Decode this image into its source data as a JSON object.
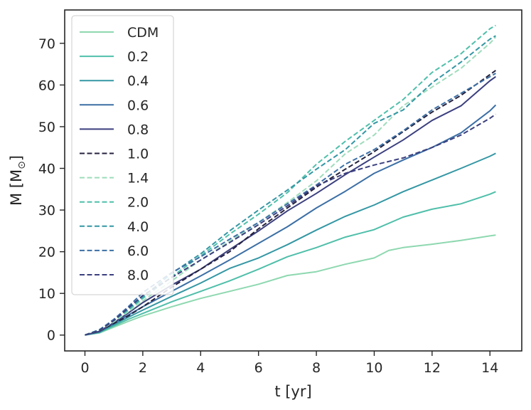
{
  "chart_data": {
    "type": "line",
    "xlabel": "t [yr]",
    "ylabel": "M [M",
    "ylabel_subscript": "⊙",
    "ylabel_close": "]",
    "xlim": [
      -0.7,
      15.1
    ],
    "ylim": [
      -3.8,
      78
    ],
    "xticks": [
      0,
      2,
      4,
      6,
      8,
      10,
      12,
      14
    ],
    "yticks": [
      0,
      10,
      20,
      30,
      40,
      50,
      60,
      70
    ],
    "legend_position": "upper-left",
    "series": [
      {
        "name": "CDM",
        "style": "solid",
        "color": "#8ed8b0",
        "x": [
          0,
          0.5,
          1,
          1.5,
          2,
          3,
          4,
          5,
          6,
          7,
          8,
          9,
          10,
          10.5,
          11,
          12,
          13,
          14,
          14.2
        ],
        "y": [
          0,
          0.5,
          1.9,
          3.3,
          4.6,
          6.8,
          8.8,
          10.5,
          12.2,
          14.3,
          15.2,
          17.0,
          18.5,
          20.3,
          21.0,
          21.8,
          22.7,
          23.8,
          24.0
        ]
      },
      {
        "name": "0.2",
        "style": "solid",
        "color": "#4fbfaa",
        "x": [
          0,
          0.5,
          1,
          1.5,
          2,
          3,
          4,
          5,
          6,
          7,
          8,
          9,
          10,
          11,
          12,
          13,
          14,
          14.2
        ],
        "y": [
          0,
          0.6,
          2.2,
          3.8,
          5.2,
          8.0,
          10.5,
          13.0,
          15.8,
          18.8,
          21.0,
          23.5,
          25.3,
          28.3,
          30.2,
          31.5,
          33.8,
          34.4
        ]
      },
      {
        "name": "0.4",
        "style": "solid",
        "color": "#3497a4",
        "x": [
          0,
          0.5,
          1,
          1.5,
          2,
          3,
          4,
          5,
          6,
          7,
          8,
          9,
          10,
          11,
          12,
          13,
          14,
          14.2
        ],
        "y": [
          0,
          0.7,
          2.5,
          4.3,
          6.0,
          9.3,
          12.5,
          16.0,
          18.5,
          21.7,
          25.2,
          28.5,
          31.2,
          34.4,
          37.2,
          40.0,
          42.9,
          43.6
        ]
      },
      {
        "name": "0.6",
        "style": "solid",
        "color": "#3c6fa5",
        "x": [
          0,
          0.5,
          1,
          1.5,
          2,
          3,
          4,
          5,
          6,
          7,
          8,
          9,
          10,
          11,
          12,
          13,
          14,
          14.2
        ],
        "y": [
          0,
          0.8,
          2.8,
          4.8,
          6.8,
          10.5,
          14.2,
          18.0,
          22.0,
          26.0,
          30.5,
          34.5,
          38.8,
          42.0,
          45.0,
          48.5,
          53.8,
          55.2
        ]
      },
      {
        "name": "0.8",
        "style": "solid",
        "color": "#3b3f7e",
        "x": [
          0,
          0.5,
          1,
          1.5,
          2,
          3,
          4,
          5,
          6,
          7,
          8,
          9,
          10,
          11,
          12,
          13,
          14,
          14.2
        ],
        "y": [
          0,
          0.9,
          3.0,
          5.3,
          7.8,
          12.0,
          15.8,
          20.5,
          25.0,
          29.8,
          34.0,
          38.5,
          42.7,
          46.8,
          51.5,
          55.0,
          61.0,
          62.0
        ]
      },
      {
        "name": "1.0",
        "style": "dashed",
        "color": "#24213d",
        "x": [
          0,
          0.5,
          1,
          1.5,
          2,
          3,
          4,
          5,
          6,
          7,
          8,
          9,
          10,
          11,
          12,
          13,
          14,
          14.2
        ],
        "y": [
          0,
          1.0,
          2.8,
          4.6,
          6.8,
          11.5,
          15.8,
          20.0,
          25.5,
          30.5,
          35.5,
          39.8,
          44.0,
          48.8,
          53.5,
          57.5,
          62.5,
          63.5
        ]
      },
      {
        "name": "1.4",
        "style": "dashed",
        "color": "#9edcbb",
        "x": [
          0,
          0.5,
          1,
          1.5,
          2,
          3,
          4,
          5,
          6,
          7,
          8,
          9,
          10,
          11,
          12,
          13,
          14,
          14.2
        ],
        "y": [
          0,
          1.1,
          3.2,
          5.6,
          8.2,
          13.0,
          18.0,
          22.5,
          27.0,
          31.8,
          37.0,
          43.5,
          48.0,
          55.0,
          59.5,
          64.0,
          70.0,
          71.5
        ]
      },
      {
        "name": "2.0",
        "style": "dashed",
        "color": "#4fbfaa",
        "x": [
          0,
          0.5,
          1,
          1.5,
          2,
          3,
          4,
          5,
          6,
          7,
          8,
          9,
          10,
          11,
          12,
          13,
          14,
          14.2
        ],
        "y": [
          0,
          1.2,
          3.5,
          6.0,
          8.8,
          14.0,
          19.0,
          24.2,
          29.0,
          34.2,
          41.0,
          46.5,
          51.5,
          56.5,
          63.0,
          67.5,
          73.5,
          74.3
        ]
      },
      {
        "name": "4.0",
        "style": "dashed",
        "color": "#3497a4",
        "x": [
          0,
          0.5,
          1,
          1.5,
          2,
          3,
          4,
          5,
          6,
          7,
          8,
          9,
          10,
          11,
          12,
          13,
          14,
          14.2
        ],
        "y": [
          0,
          1.3,
          3.6,
          6.2,
          9.2,
          14.8,
          19.5,
          25.0,
          30.0,
          34.8,
          39.8,
          44.5,
          50.8,
          54.0,
          60.5,
          65.5,
          71.0,
          71.8
        ]
      },
      {
        "name": "6.0",
        "style": "dashed",
        "color": "#3c6fa5",
        "x": [
          0,
          0.5,
          1,
          1.5,
          2,
          3,
          4,
          5,
          6,
          7,
          8,
          9,
          10,
          11,
          12,
          13,
          14,
          14.2
        ],
        "y": [
          0,
          1.2,
          3.8,
          6.8,
          10.2,
          15.0,
          18.8,
          23.0,
          27.0,
          31.5,
          36.0,
          41.0,
          44.5,
          49.0,
          54.0,
          58.0,
          62.0,
          62.8
        ]
      },
      {
        "name": "8.0",
        "style": "dashed",
        "color": "#3b3f7e",
        "x": [
          0,
          0.5,
          1,
          1.5,
          2,
          3,
          4,
          5,
          6,
          7,
          8,
          9,
          10,
          11,
          12,
          13,
          14,
          14.2
        ],
        "y": [
          0,
          1.1,
          3.5,
          6.5,
          9.5,
          13.8,
          18.0,
          22.2,
          26.5,
          31.0,
          35.8,
          38.8,
          40.8,
          42.5,
          45.0,
          48.0,
          52.0,
          53.0
        ]
      }
    ]
  }
}
